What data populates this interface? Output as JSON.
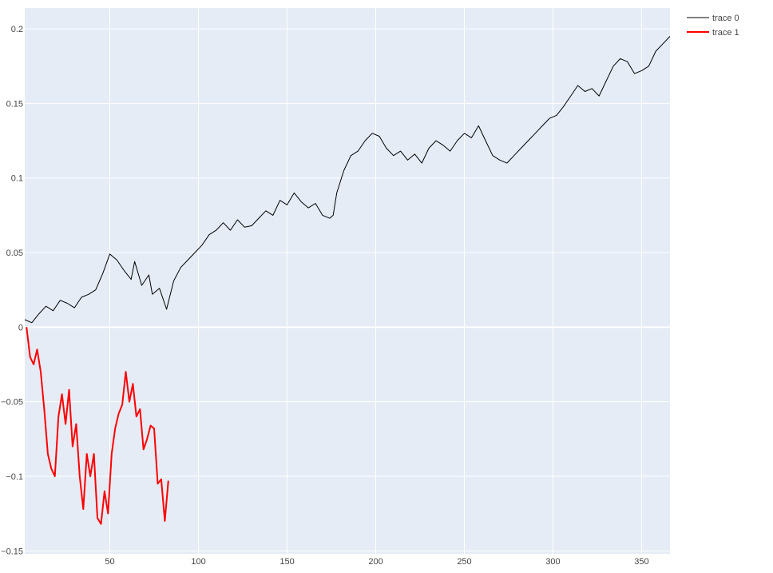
{
  "chart_data": {
    "type": "line",
    "title": "",
    "xlabel": "",
    "ylabel": "",
    "xlim": [
      2,
      366
    ],
    "ylim": [
      -0.152,
      0.214
    ],
    "x_ticks": [
      50,
      100,
      150,
      200,
      250,
      300,
      350
    ],
    "y_ticks": [
      -0.15,
      -0.1,
      -0.05,
      0,
      0.05,
      0.1,
      0.15,
      0.2
    ],
    "y_tick_labels": [
      "−0.15",
      "−0.1",
      "−0.05",
      "0",
      "0.05",
      "0.1",
      "0.15",
      "0.2"
    ],
    "grid": true,
    "legend_position": "top-right",
    "colors": {
      "plot_bg": "#e5ecf6",
      "grid": "#ffffff",
      "zeroline": "#ffffff"
    },
    "series": [
      {
        "name": "trace 0",
        "color": "#000000",
        "x": [
          2,
          6,
          10,
          14,
          18,
          22,
          26,
          30,
          34,
          38,
          42,
          46,
          50,
          54,
          58,
          62,
          64,
          68,
          72,
          74,
          78,
          82,
          86,
          90,
          94,
          98,
          102,
          106,
          110,
          114,
          118,
          122,
          126,
          130,
          134,
          138,
          142,
          146,
          150,
          154,
          158,
          162,
          166,
          170,
          174,
          176,
          178,
          182,
          186,
          190,
          194,
          198,
          202,
          206,
          210,
          214,
          218,
          222,
          226,
          230,
          234,
          238,
          242,
          246,
          250,
          254,
          258,
          262,
          266,
          270,
          274,
          278,
          282,
          286,
          290,
          294,
          298,
          302,
          306,
          310,
          314,
          318,
          322,
          326,
          330,
          334,
          338,
          342,
          346,
          350,
          354,
          358,
          362,
          366
        ],
        "y": [
          0.005,
          0.003,
          0.009,
          0.014,
          0.011,
          0.018,
          0.016,
          0.013,
          0.02,
          0.022,
          0.025,
          0.036,
          0.049,
          0.045,
          0.038,
          0.032,
          0.044,
          0.028,
          0.035,
          0.022,
          0.026,
          0.012,
          0.031,
          0.04,
          0.045,
          0.05,
          0.055,
          0.062,
          0.065,
          0.07,
          0.065,
          0.072,
          0.067,
          0.068,
          0.073,
          0.078,
          0.075,
          0.085,
          0.082,
          0.09,
          0.084,
          0.08,
          0.083,
          0.075,
          0.073,
          0.075,
          0.09,
          0.105,
          0.115,
          0.118,
          0.125,
          0.13,
          0.128,
          0.12,
          0.115,
          0.118,
          0.112,
          0.116,
          0.11,
          0.12,
          0.125,
          0.122,
          0.118,
          0.125,
          0.13,
          0.127,
          0.135,
          0.125,
          0.115,
          0.112,
          0.11,
          0.115,
          0.12,
          0.125,
          0.13,
          0.135,
          0.14,
          0.142,
          0.148,
          0.155,
          0.162,
          0.158,
          0.16,
          0.155,
          0.165,
          0.175,
          0.18,
          0.178,
          0.17,
          0.172,
          0.175,
          0.185,
          0.19,
          0.195
        ]
      },
      {
        "name": "trace 1",
        "color": "#ff0000",
        "x": [
          3,
          5,
          7,
          9,
          11,
          13,
          15,
          17,
          19,
          21,
          23,
          25,
          27,
          29,
          31,
          33,
          35,
          37,
          39,
          41,
          43,
          45,
          47,
          49,
          51,
          53,
          55,
          57,
          59,
          61,
          63,
          65,
          67,
          69,
          71,
          73,
          75,
          77,
          79,
          81,
          83
        ],
        "y": [
          0,
          -0.02,
          -0.025,
          -0.015,
          -0.03,
          -0.055,
          -0.085,
          -0.095,
          -0.1,
          -0.06,
          -0.045,
          -0.065,
          -0.042,
          -0.08,
          -0.065,
          -0.1,
          -0.122,
          -0.085,
          -0.1,
          -0.085,
          -0.128,
          -0.132,
          -0.11,
          -0.125,
          -0.085,
          -0.068,
          -0.058,
          -0.052,
          -0.03,
          -0.05,
          -0.038,
          -0.06,
          -0.055,
          -0.082,
          -0.075,
          -0.066,
          -0.068,
          -0.105,
          -0.102,
          -0.13,
          -0.103
        ]
      }
    ]
  }
}
